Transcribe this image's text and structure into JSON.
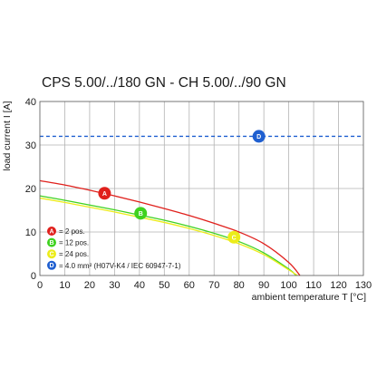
{
  "chart_data": {
    "type": "line",
    "title": "CPS 5.00/../180 GN - CH 5.00/../90 GN",
    "xlabel": "ambient temperature T [°C]",
    "ylabel": "load current I [A]",
    "xlim": [
      0,
      130
    ],
    "ylim": [
      0,
      40
    ],
    "x_ticks": [
      0,
      10,
      20,
      30,
      40,
      50,
      60,
      70,
      80,
      90,
      100,
      110,
      120,
      130
    ],
    "y_ticks": [
      0,
      10,
      20,
      30,
      40
    ],
    "grid": true,
    "series": [
      {
        "marker": "A",
        "color": "#e0201c",
        "x": [
          0,
          10,
          20,
          30,
          40,
          50,
          60,
          70,
          80,
          90,
          100,
          104.5
        ],
        "y": [
          21.8,
          20.8,
          19.6,
          18.3,
          16.9,
          15.4,
          13.8,
          12.0,
          10.0,
          7.3,
          3.0,
          0
        ]
      },
      {
        "marker": "B",
        "color": "#3fd21f",
        "x": [
          0,
          10,
          20,
          30,
          40,
          50,
          60,
          70,
          80,
          90,
          100,
          103
        ],
        "y": [
          18.3,
          17.3,
          16.2,
          15.1,
          13.9,
          12.7,
          11.3,
          9.7,
          7.8,
          5.2,
          1.5,
          0
        ]
      },
      {
        "marker": "C",
        "color": "#ecec1a",
        "x": [
          0,
          10,
          20,
          30,
          40,
          50,
          60,
          70,
          80,
          90,
          100,
          103.5
        ],
        "y": [
          17.8,
          16.8,
          15.7,
          14.6,
          13.4,
          12.2,
          10.8,
          9.2,
          7.3,
          4.8,
          1.3,
          0
        ]
      },
      {
        "marker": "D",
        "color": "#1f5fd0",
        "dashed": true,
        "x": [
          0,
          130
        ],
        "y": [
          32,
          32
        ]
      }
    ],
    "markers": [
      {
        "label": "A",
        "color": "#e0201c",
        "x": 26,
        "y": 18.9
      },
      {
        "label": "B",
        "color": "#3fd21f",
        "x": 40.5,
        "y": 14.3
      },
      {
        "label": "C",
        "color": "#ecec1a",
        "x": 78,
        "y": 8.8
      },
      {
        "label": "D",
        "color": "#1f5fd0",
        "x": 88,
        "y": 32
      }
    ],
    "legend": {
      "placement": "bottom-left",
      "entries": [
        {
          "label": "A",
          "color": "#e0201c",
          "text": "= 2 pos."
        },
        {
          "label": "B",
          "color": "#3fd21f",
          "text": "= 12 pos."
        },
        {
          "label": "C",
          "color": "#ecec1a",
          "text": "= 24 pos."
        },
        {
          "label": "D",
          "color": "#1f5fd0",
          "text": "= 4.0 mm² (H07V-K4 / IEC 60947-7-1)"
        }
      ]
    }
  }
}
